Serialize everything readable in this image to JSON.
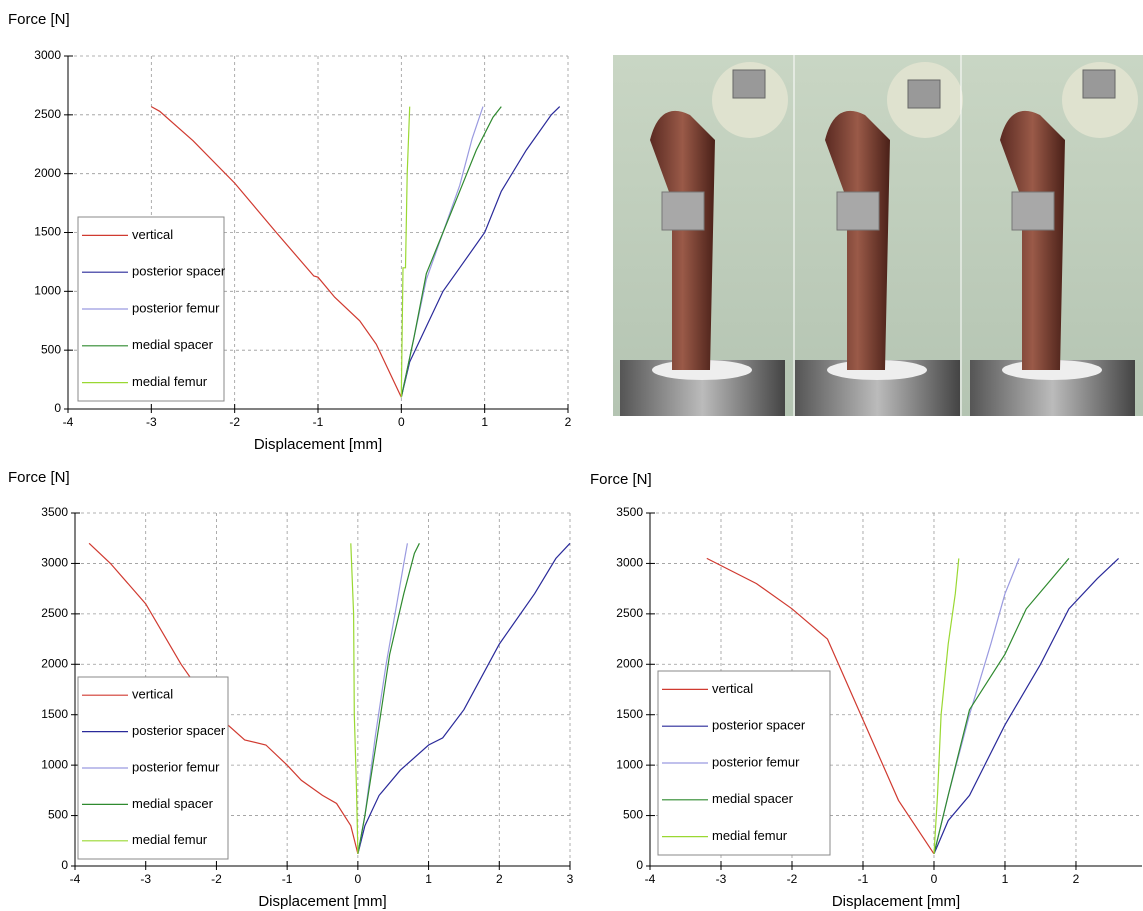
{
  "chart_data": [
    {
      "type": "line",
      "ylabel": "Force [N]",
      "xlabel": "Displacement [mm]",
      "xlim": [
        -4,
        2
      ],
      "ylim": [
        0,
        3000
      ],
      "xticks": [
        -4,
        -3,
        -2,
        -1,
        0,
        1,
        2
      ],
      "yticks": [
        0,
        500,
        1000,
        1500,
        2000,
        2500,
        3000
      ],
      "grid": true,
      "legend": "lower left",
      "series": [
        {
          "name": "vertical",
          "color": "#d03a30",
          "x": [
            0,
            -0.3,
            -0.5,
            -0.8,
            -1,
            -1.05,
            -1.5,
            -2,
            -2.5,
            -2.9,
            -3
          ],
          "values": [
            100,
            550,
            750,
            950,
            1120,
            1130,
            1500,
            1920,
            2280,
            2530,
            2570
          ]
        },
        {
          "name": "posterior spacer",
          "color": "#2a2a9a",
          "x": [
            0,
            0.1,
            0.3,
            0.5,
            0.7,
            1,
            1.2,
            1.5,
            1.8,
            1.9
          ],
          "values": [
            100,
            400,
            700,
            1000,
            1200,
            1500,
            1850,
            2200,
            2500,
            2570
          ]
        },
        {
          "name": "posterior femur",
          "color": "#9a9ae0",
          "x": [
            0,
            0.15,
            0.3,
            0.5,
            0.7,
            0.85,
            0.98
          ],
          "values": [
            100,
            600,
            1100,
            1500,
            1900,
            2300,
            2570
          ]
        },
        {
          "name": "medial spacer",
          "color": "#2f8a2f",
          "x": [
            0,
            0.15,
            0.3,
            0.5,
            0.7,
            0.9,
            1.1,
            1.2
          ],
          "values": [
            100,
            600,
            1150,
            1500,
            1850,
            2200,
            2480,
            2570
          ]
        },
        {
          "name": "medial femur",
          "color": "#9ad832",
          "x": [
            0,
            0.02,
            0.05,
            0.07,
            0.1
          ],
          "values": [
            100,
            1200,
            1200,
            2000,
            2570
          ]
        }
      ]
    },
    {
      "type": "line",
      "ylabel": "Force [N]",
      "xlabel": "Displacement [mm]",
      "xlim": [
        -4,
        3
      ],
      "ylim": [
        0,
        3500
      ],
      "xticks": [
        -4,
        -3,
        -2,
        -1,
        0,
        1,
        2,
        3
      ],
      "yticks": [
        0,
        500,
        1000,
        1500,
        2000,
        2500,
        3000,
        3500
      ],
      "grid": true,
      "legend": "lower left",
      "series": [
        {
          "name": "vertical",
          "color": "#d03a30",
          "x": [
            0,
            -0.1,
            -0.3,
            -0.5,
            -0.8,
            -1,
            -1.3,
            -1.6,
            -2,
            -2.5,
            -3,
            -3.5,
            -3.8
          ],
          "values": [
            120,
            400,
            620,
            700,
            850,
            1000,
            1200,
            1250,
            1500,
            2000,
            2600,
            3000,
            3200
          ]
        },
        {
          "name": "posterior spacer",
          "color": "#2a2a9a",
          "x": [
            0,
            0.1,
            0.3,
            0.6,
            1,
            1.2,
            1.5,
            2,
            2.5,
            2.8,
            3
          ],
          "values": [
            120,
            400,
            700,
            950,
            1200,
            1270,
            1550,
            2200,
            2700,
            3050,
            3200
          ]
        },
        {
          "name": "posterior femur",
          "color": "#9a9ae0",
          "x": [
            0,
            0.1,
            0.25,
            0.4,
            0.55,
            0.65,
            0.7
          ],
          "values": [
            120,
            500,
            1300,
            2000,
            2600,
            3000,
            3200
          ]
        },
        {
          "name": "medial spacer",
          "color": "#2f8a2f",
          "x": [
            0,
            0.1,
            0.3,
            0.45,
            0.65,
            0.8,
            0.87
          ],
          "values": [
            120,
            500,
            1400,
            2100,
            2700,
            3100,
            3200
          ]
        },
        {
          "name": "medial femur",
          "color": "#9ad832",
          "x": [
            0,
            -0.02,
            -0.05,
            -0.06,
            -0.1
          ],
          "values": [
            120,
            800,
            1500,
            2500,
            3200
          ]
        }
      ]
    },
    {
      "type": "line",
      "ylabel": "Force [N]",
      "xlabel": "Displacement [mm]",
      "xlim": [
        -4,
        2.93
      ],
      "ylim": [
        0,
        3500
      ],
      "xticks": [
        -4,
        -3,
        -2,
        -1,
        0,
        1,
        2
      ],
      "yticks": [
        0,
        500,
        1000,
        1500,
        2000,
        2500,
        3000,
        3500
      ],
      "grid": true,
      "legend": "lower left",
      "series": [
        {
          "name": "vertical",
          "color": "#d03a30",
          "x": [
            0,
            -0.5,
            -1,
            -1.5,
            -2,
            -2.5,
            -3.2
          ],
          "values": [
            120,
            650,
            1450,
            2250,
            2550,
            2800,
            3050
          ]
        },
        {
          "name": "posterior spacer",
          "color": "#2a2a9a",
          "x": [
            0,
            0.2,
            0.5,
            1,
            1.5,
            1.9,
            2.3,
            2.6
          ],
          "values": [
            120,
            450,
            700,
            1400,
            2000,
            2550,
            2850,
            3050
          ]
        },
        {
          "name": "posterior femur",
          "color": "#9a9ae0",
          "x": [
            0,
            0.2,
            0.5,
            0.8,
            1,
            1.2
          ],
          "values": [
            120,
            700,
            1500,
            2200,
            2700,
            3050
          ]
        },
        {
          "name": "medial spacer",
          "color": "#2f8a2f",
          "x": [
            0,
            0.2,
            0.5,
            1,
            1.3,
            1.6,
            1.9
          ],
          "values": [
            120,
            700,
            1550,
            2100,
            2550,
            2800,
            3050
          ]
        },
        {
          "name": "medial femur",
          "color": "#9ad832",
          "x": [
            0,
            0.05,
            0.1,
            0.2,
            0.3,
            0.35
          ],
          "values": [
            120,
            700,
            1500,
            2200,
            2700,
            3050
          ]
        }
      ]
    }
  ]
}
